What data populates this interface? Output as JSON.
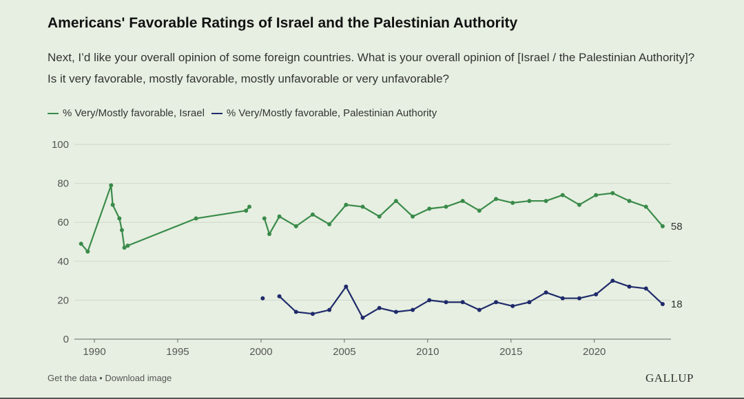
{
  "header": {
    "title": "Americans' Favorable Ratings of Israel and the Palestinian Authority",
    "subtitle": "Next, I’d like your overall opinion of some foreign countries. What is your overall opinion of [Israel / the Palestinian Authority]? Is it very favorable, mostly favorable, mostly unfavorable or very unfavorable?"
  },
  "footer": {
    "get_data": "Get the data",
    "separator": " • ",
    "download": "Download image",
    "logo": "GALLUP"
  },
  "colors": {
    "israel": "#3a8a4a",
    "pa": "#1f2a6b",
    "grid": "#cfd8c9",
    "axis": "#666666",
    "tick_text": "#555555"
  },
  "chart_data": {
    "type": "line",
    "title": "Americans' Favorable Ratings of Israel and the Palestinian Authority",
    "xlabel": "",
    "ylabel": "",
    "xlim": [
      1988.8,
      2024.6
    ],
    "ylim": [
      0,
      100
    ],
    "yticks": [
      0,
      20,
      40,
      60,
      80,
      100
    ],
    "xticks": [
      1990,
      1995,
      2000,
      2005,
      2010,
      2015,
      2020
    ],
    "grid": true,
    "legend_position": "top-left",
    "series": [
      {
        "name": "% Very/Mostly favorable, Israel",
        "color_key": "israel",
        "end_label": "58",
        "segments": [
          [
            [
              1989.2,
              49
            ],
            [
              1989.6,
              45
            ],
            [
              1991.0,
              79
            ],
            [
              1991.1,
              69
            ],
            [
              1991.5,
              62
            ],
            [
              1991.65,
              56
            ],
            [
              1991.8,
              47
            ],
            [
              1992.0,
              48
            ],
            [
              1996.1,
              62
            ],
            [
              1999.1,
              66
            ],
            [
              1999.3,
              68
            ]
          ],
          [
            [
              2000.2,
              62
            ],
            [
              2000.5,
              54
            ],
            [
              2001.1,
              63
            ],
            [
              2002.1,
              58
            ],
            [
              2003.1,
              64
            ],
            [
              2004.1,
              59
            ],
            [
              2005.1,
              69
            ],
            [
              2006.1,
              68
            ],
            [
              2007.1,
              63
            ],
            [
              2008.1,
              71
            ],
            [
              2009.1,
              63
            ],
            [
              2010.1,
              67
            ],
            [
              2011.1,
              68
            ],
            [
              2012.1,
              71
            ],
            [
              2013.1,
              66
            ],
            [
              2014.1,
              72
            ],
            [
              2015.1,
              70
            ],
            [
              2016.1,
              71
            ],
            [
              2017.1,
              71
            ],
            [
              2018.1,
              74
            ],
            [
              2019.1,
              69
            ],
            [
              2020.1,
              74
            ],
            [
              2021.1,
              75
            ],
            [
              2022.1,
              71
            ],
            [
              2023.1,
              68
            ],
            [
              2024.1,
              58
            ]
          ]
        ]
      },
      {
        "name": "% Very/Mostly favorable, Palestinian Authority",
        "color_key": "pa",
        "end_label": "18",
        "segments": [
          [
            [
              2000.1,
              21
            ]
          ],
          [
            [
              2001.1,
              22
            ],
            [
              2002.1,
              14
            ],
            [
              2003.1,
              13
            ],
            [
              2004.1,
              15
            ],
            [
              2005.1,
              27
            ],
            [
              2006.1,
              11
            ],
            [
              2007.1,
              16
            ],
            [
              2008.1,
              14
            ],
            [
              2009.1,
              15
            ],
            [
              2010.1,
              20
            ],
            [
              2011.1,
              19
            ],
            [
              2012.1,
              19
            ],
            [
              2013.1,
              15
            ],
            [
              2014.1,
              19
            ],
            [
              2015.1,
              17
            ],
            [
              2016.1,
              19
            ],
            [
              2017.1,
              24
            ],
            [
              2018.1,
              21
            ],
            [
              2019.1,
              21
            ],
            [
              2020.1,
              23
            ],
            [
              2021.1,
              30
            ],
            [
              2022.1,
              27
            ],
            [
              2023.1,
              26
            ],
            [
              2024.1,
              18
            ]
          ]
        ]
      }
    ]
  }
}
